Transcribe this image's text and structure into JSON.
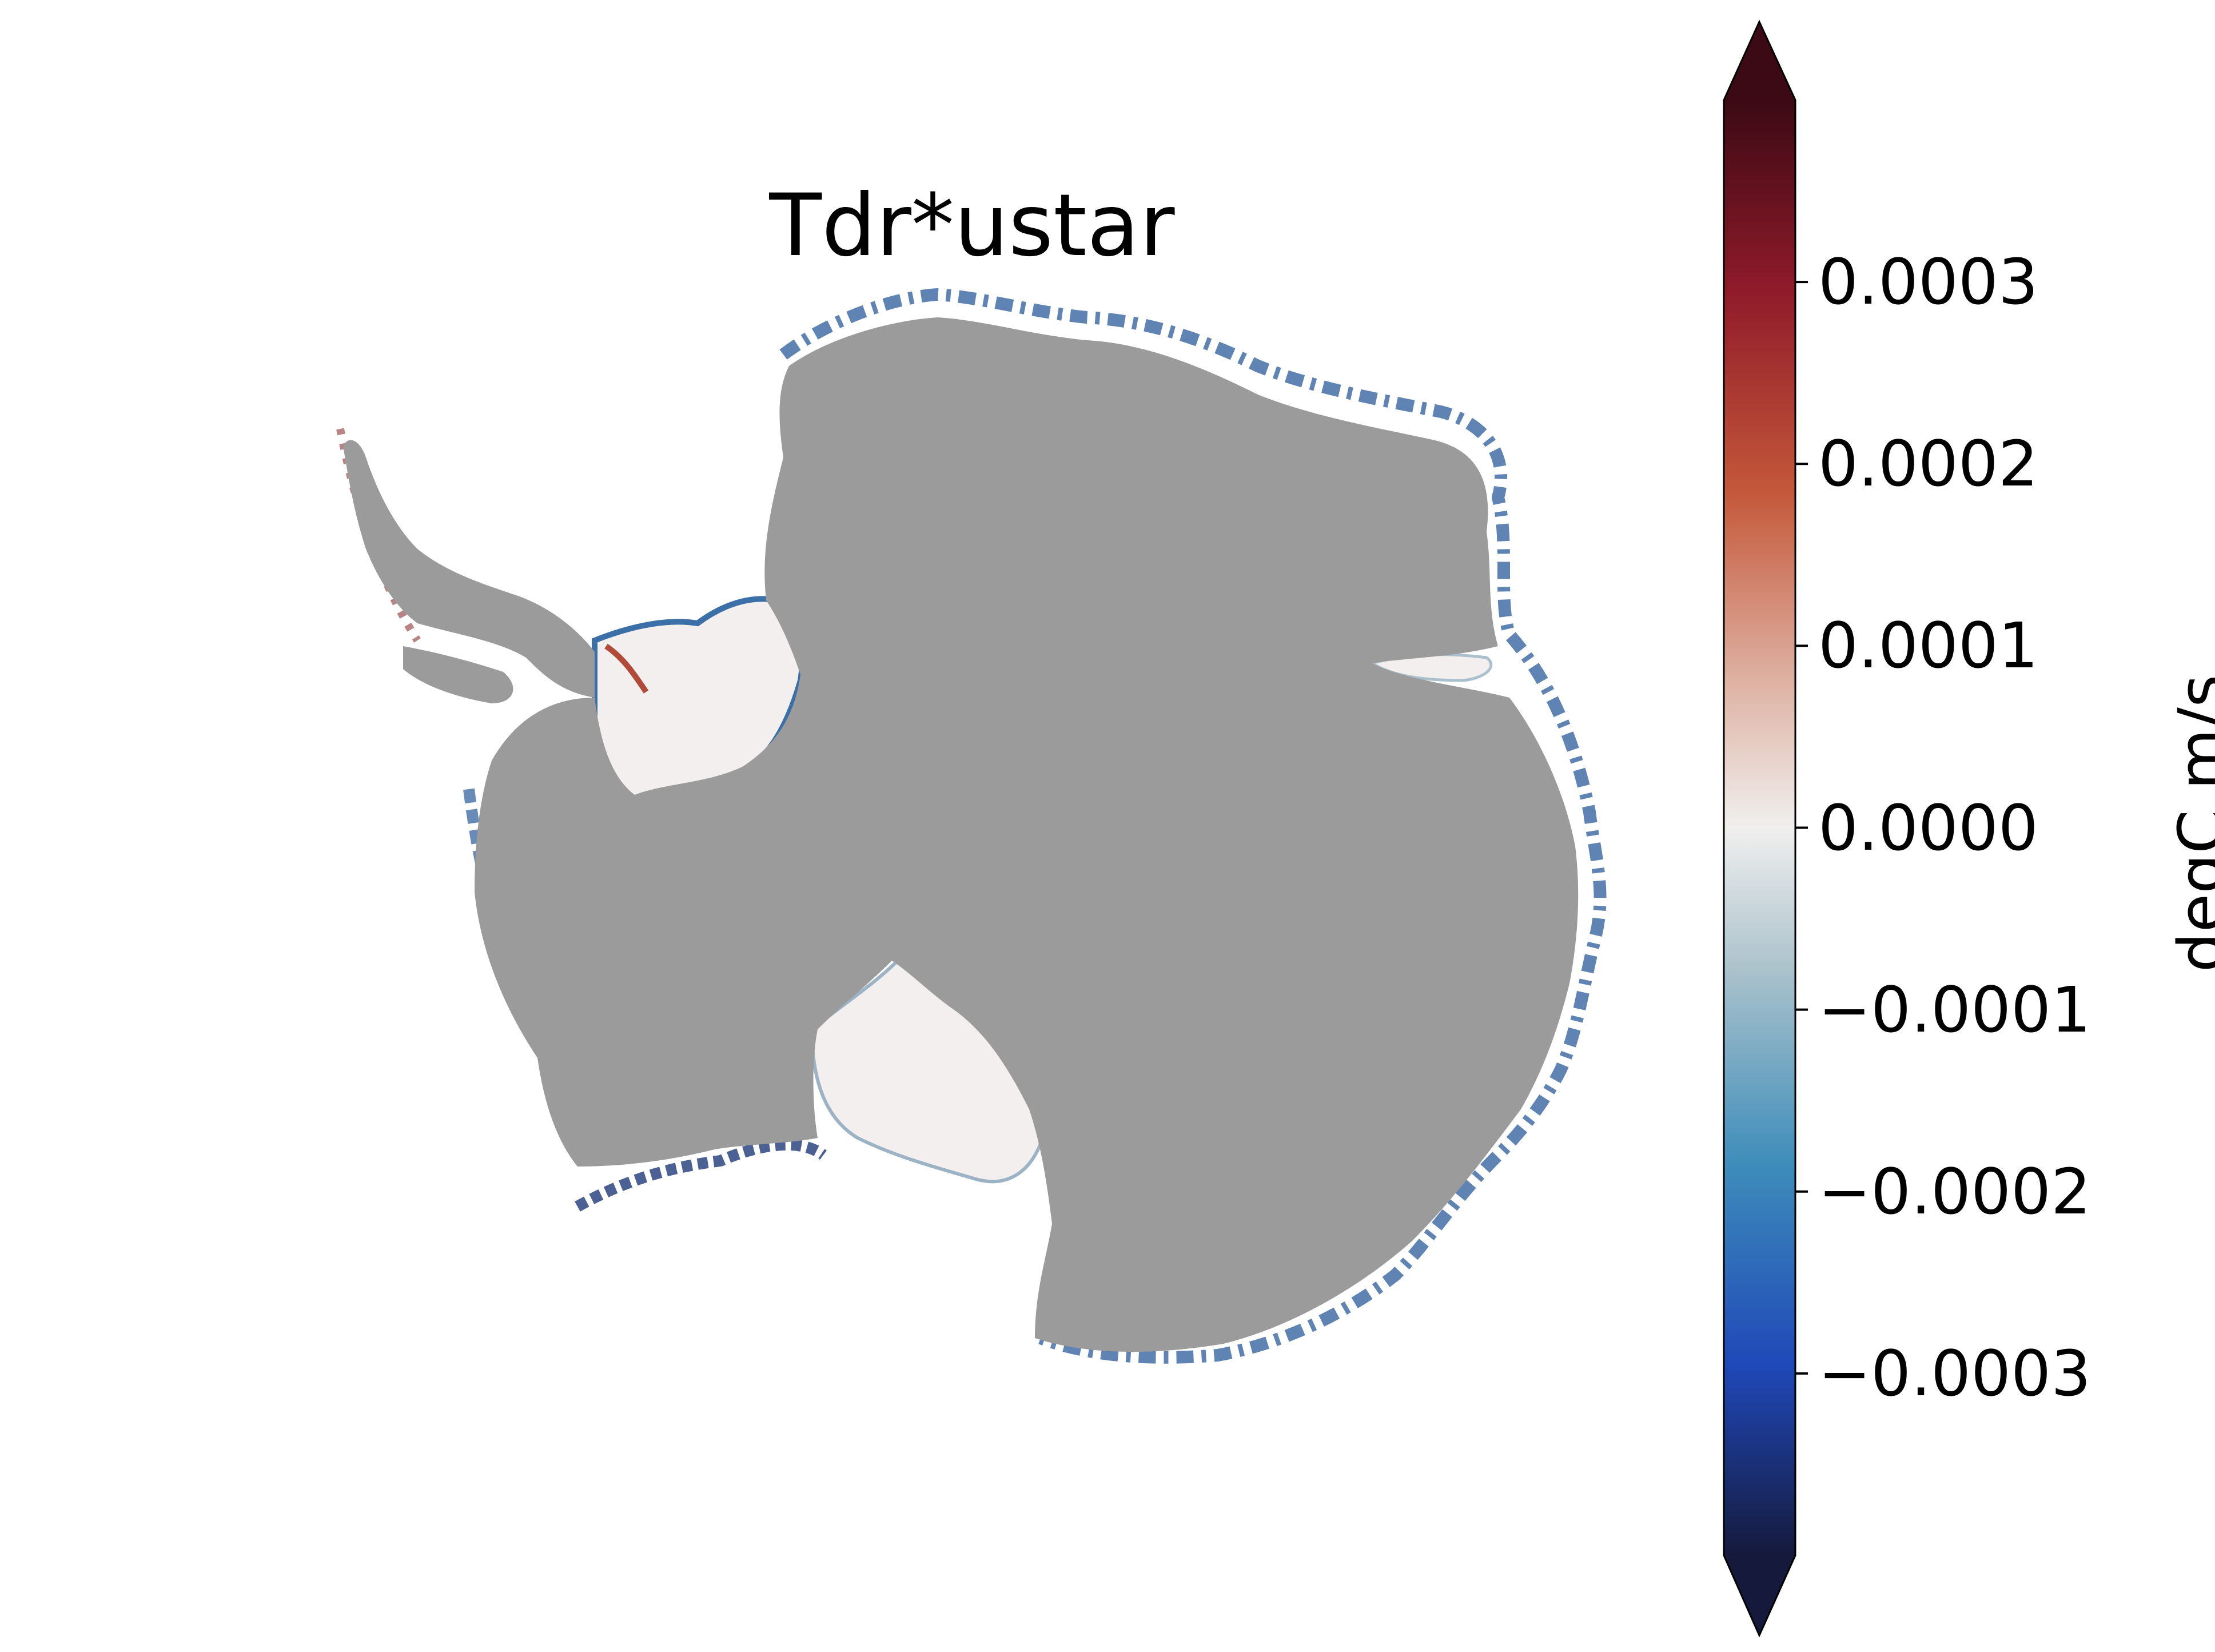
{
  "figure": {
    "title": "Tdr*ustar",
    "colorbar": {
      "label": "degC m/s",
      "colormap": "balance (diverging, dark blue – white – dark red)",
      "extend": "both",
      "range": [
        -0.0004,
        0.0004
      ],
      "ticks": [
        {
          "value": 0.0003,
          "label": "0.0003"
        },
        {
          "value": 0.0002,
          "label": "0.0002"
        },
        {
          "value": 0.0001,
          "label": "0.0001"
        },
        {
          "value": 0.0,
          "label": "0.0000"
        },
        {
          "value": -0.0001,
          "label": "−0.0001"
        },
        {
          "value": -0.0002,
          "label": "−0.0002"
        },
        {
          "value": -0.0003,
          "label": "−0.0003"
        }
      ],
      "colors": {
        "max": "#3b0a14",
        "pos_high": "#8f1a2a",
        "pos_mid": "#c4583a",
        "pos_low": "#deb2a3",
        "zero": "#f0efee",
        "neg_low": "#a9c1cb",
        "neg_mid": "#3e8dba",
        "neg_high": "#1f48b8",
        "min": "#151a3c"
      }
    },
    "map": {
      "region": "Antarctica",
      "land_color": "#9b9b9b",
      "ice_shelf_color": "#f2efee",
      "background": "#ffffff"
    }
  }
}
